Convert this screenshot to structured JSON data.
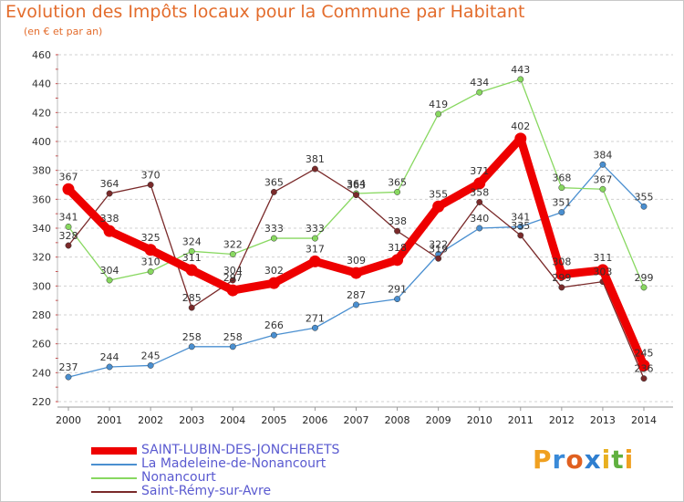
{
  "header": {
    "title": "Evolution des Impôts locaux pour la Commune par Habitant",
    "subtitle": "(en € et par an)"
  },
  "logo": {
    "letters": [
      "P",
      "r",
      "o",
      "x",
      "i",
      "t",
      "i"
    ],
    "colors": [
      "#f0a020",
      "#3a8ad8",
      "#e06020",
      "#2f7fd0",
      "#e8b020",
      "#60b040",
      "#f0a020"
    ]
  },
  "chart_data": {
    "type": "line",
    "title": "Evolution des Impôts locaux pour la Commune par Habitant",
    "subtitle": "(en € et par an)",
    "x": [
      "2000",
      "2001",
      "2002",
      "2003",
      "2004",
      "2005",
      "2006",
      "2007",
      "2008",
      "2009",
      "2010",
      "2011",
      "2012",
      "2013",
      "2014"
    ],
    "ylim": [
      220,
      460
    ],
    "yticks": [
      220,
      240,
      260,
      280,
      300,
      320,
      340,
      360,
      380,
      400,
      420,
      440,
      460
    ],
    "grid": "horizontal-dashed",
    "legend_position": "bottom-left",
    "series": [
      {
        "name": "La Madeleine-de-Nonancourt",
        "color": "#4a8fd0",
        "values": [
          237,
          244,
          245,
          258,
          258,
          266,
          271,
          287,
          291,
          322,
          340,
          341,
          351,
          384,
          355
        ]
      },
      {
        "name": "Nonancourt",
        "color": "#88d860",
        "values": [
          341,
          304,
          310,
          324,
          322,
          333,
          333,
          364,
          365,
          419,
          434,
          443,
          368,
          367,
          299
        ]
      },
      {
        "name": "Saint-Rémy-sur-Avre",
        "color": "#7a2a2a",
        "values": [
          328,
          364,
          370,
          285,
          304,
          365,
          381,
          363,
          338,
          319,
          358,
          335,
          299,
          303,
          236
        ]
      },
      {
        "name": "SAINT-LUBIN-DES-JONCHERETS",
        "color": "#ee0000",
        "values": [
          367,
          338,
          325,
          311,
          297,
          302,
          317,
          309,
          318,
          355,
          371,
          402,
          308,
          311,
          245
        ]
      }
    ]
  }
}
